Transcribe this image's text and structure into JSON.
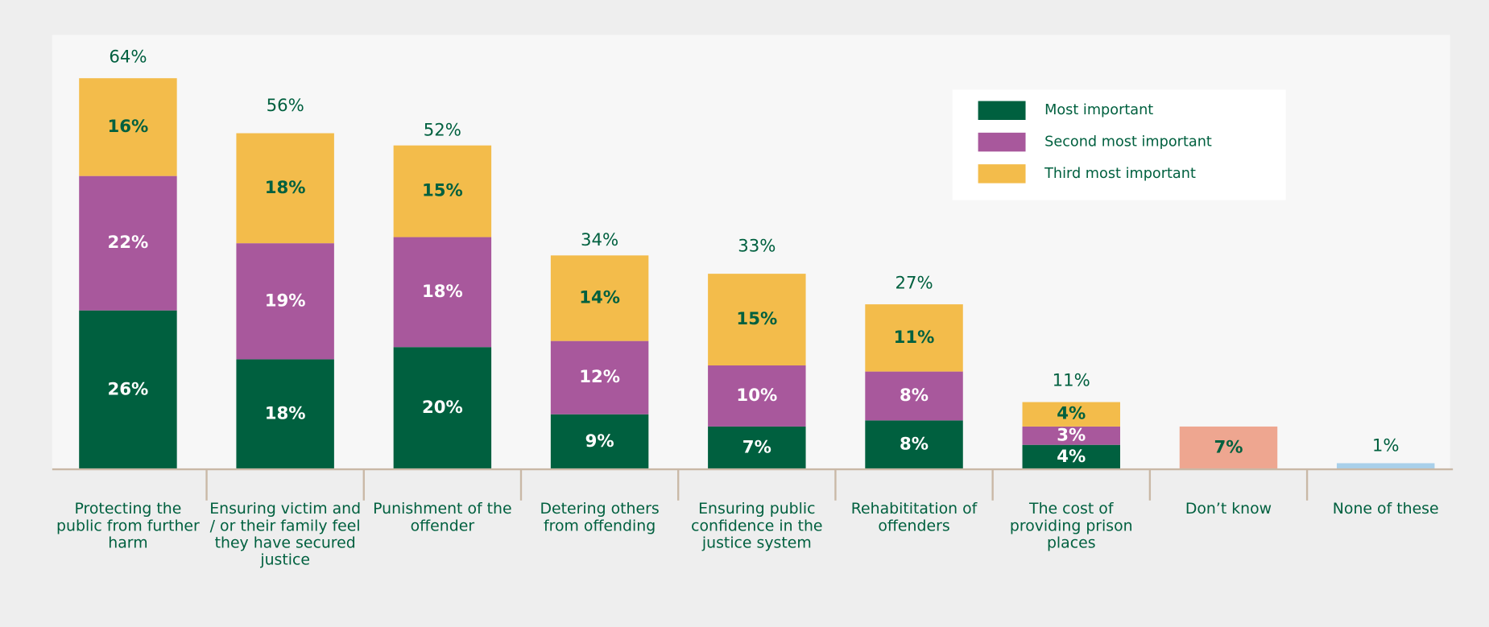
{
  "chart_data": {
    "type": "stacked_bar",
    "categories": [
      "Protecting the public from further harm",
      "Ensuring victim and / or their family feel they have secured justice",
      "Punishment of the offender",
      "Detering others from offending",
      "Ensuring public confidence in the justice system",
      "Rehabititation of offenders",
      "The cost of providing prison places",
      "Don’t know",
      "None of these"
    ],
    "series": [
      {
        "name": "Most important",
        "color": "#00603f",
        "label_color": "#ffffff",
        "values": [
          26,
          18,
          20,
          9,
          7,
          8,
          4,
          null,
          null
        ],
        "value_labels": [
          "26%",
          "18%",
          "20%",
          "9%",
          "7%",
          "8%",
          "4%",
          null,
          null
        ]
      },
      {
        "name": "Second most important",
        "color": "#a8589c",
        "label_color": "#ffffff",
        "values": [
          22,
          19,
          18,
          12,
          10,
          8,
          3,
          null,
          null
        ],
        "value_labels": [
          "22%",
          "19%",
          "18%",
          "12%",
          "10%",
          "8%",
          "3%",
          null,
          null
        ]
      },
      {
        "name": "Third most important",
        "color": "#f3bc4b",
        "label_color": "#00603f",
        "values": [
          16,
          18,
          15,
          14,
          15,
          11,
          4,
          null,
          null
        ],
        "value_labels": [
          "16%",
          "18%",
          "15%",
          "14%",
          "15%",
          "11%",
          "4%",
          null,
          null
        ]
      }
    ],
    "totals": [
      64,
      56,
      52,
      34,
      33,
      27,
      11,
      null,
      null
    ],
    "total_labels": [
      "64%",
      "56%",
      "52%",
      "34%",
      "33%",
      "27%",
      "11%",
      null,
      null
    ],
    "other_values": [
      null,
      null,
      null,
      null,
      null,
      null,
      null,
      7,
      1
    ],
    "other_labels": [
      null,
      null,
      null,
      null,
      null,
      null,
      null,
      "7%",
      "1%"
    ],
    "other_colors": [
      null,
      null,
      null,
      null,
      null,
      null,
      null,
      "#eea690",
      "#a9d0ea"
    ],
    "ylim": [
      0,
      70
    ],
    "legend": "top-right"
  }
}
